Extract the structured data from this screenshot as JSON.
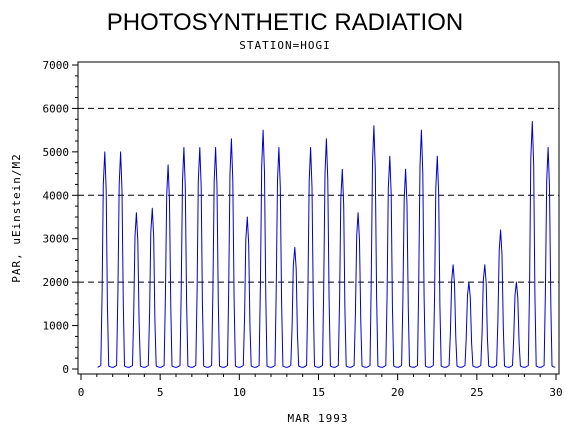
{
  "chart_data": {
    "type": "line",
    "title": "PHOTOSYNTHETIC RADIATION",
    "subtitle": "STATION=HOGI",
    "xlabel": "MAR 1993",
    "ylabel": "PAR, uEinstein/M2",
    "xlim": [
      0,
      30
    ],
    "ylim": [
      0,
      7000
    ],
    "x_ticks": [
      0,
      5,
      10,
      15,
      20,
      25,
      30
    ],
    "y_ticks": [
      0,
      1000,
      2000,
      3000,
      4000,
      5000,
      6000,
      7000
    ],
    "reference_lines_y": [
      2000,
      4000,
      6000
    ],
    "grid": false,
    "line_color": "#0000cc",
    "series": [
      {
        "values": [
          {
            "day": 1,
            "peak": 5000
          },
          {
            "day": 2,
            "peak": 5000
          },
          {
            "day": 3,
            "peak": 3600
          },
          {
            "day": 4,
            "peak": 3700
          },
          {
            "day": 5,
            "peak": 4700
          },
          {
            "day": 6,
            "peak": 5100
          },
          {
            "day": 7,
            "peak": 5100
          },
          {
            "day": 8,
            "peak": 5100
          },
          {
            "day": 9,
            "peak": 5300
          },
          {
            "day": 10,
            "peak": 3500
          },
          {
            "day": 11,
            "peak": 5500
          },
          {
            "day": 12,
            "peak": 5100
          },
          {
            "day": 13,
            "peak": 2800
          },
          {
            "day": 14,
            "peak": 5100
          },
          {
            "day": 15,
            "peak": 5300
          },
          {
            "day": 16,
            "peak": 4600
          },
          {
            "day": 17,
            "peak": 3600
          },
          {
            "day": 18,
            "peak": 5600
          },
          {
            "day": 19,
            "peak": 4900
          },
          {
            "day": 20,
            "peak": 4600
          },
          {
            "day": 21,
            "peak": 5500
          },
          {
            "day": 22,
            "peak": 4900
          },
          {
            "day": 23,
            "peak": 2400
          },
          {
            "day": 24,
            "peak": 2000
          },
          {
            "day": 25,
            "peak": 2400
          },
          {
            "day": 26,
            "peak": 3200
          },
          {
            "day": 27,
            "peak": 2000
          },
          {
            "day": 28,
            "peak": 5700
          },
          {
            "day": 29,
            "peak": 5100
          }
        ]
      }
    ]
  }
}
